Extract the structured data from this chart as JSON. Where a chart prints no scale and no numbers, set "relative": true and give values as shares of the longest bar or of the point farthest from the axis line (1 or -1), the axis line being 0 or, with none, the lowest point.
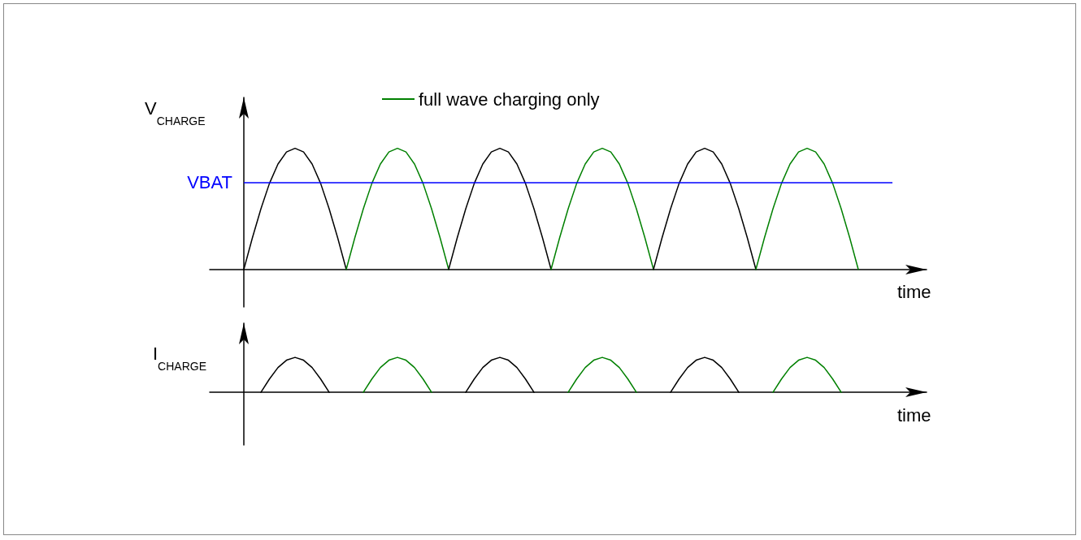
{
  "chart_data": [
    {
      "type": "line",
      "relative": true,
      "ylabel": "V$_{CHARGE}$",
      "xlabel": "time",
      "legend": "top",
      "marker": "none",
      "line_style": "solid",
      "grid": false,
      "categories": [
        null,
        null,
        null,
        null,
        null,
        null,
        null,
        null,
        null,
        null,
        null,
        null,
        null,
        null,
        null,
        null,
        null,
        null,
        null,
        null,
        null,
        null,
        null,
        null,
        null,
        null,
        null,
        null,
        null,
        null,
        null,
        null,
        null,
        null,
        null,
        null,
        null,
        null,
        null,
        null,
        null,
        null,
        null,
        null,
        null,
        null,
        null,
        null,
        null,
        null,
        null,
        null,
        null,
        null,
        null,
        null,
        null,
        null,
        null,
        null,
        null,
        null,
        null,
        null,
        null,
        null,
        null,
        null,
        null,
        null,
        null,
        null,
        null
      ],
      "series": [
        {
          "color": "#000000",
          "values": [
            0,
            0.26,
            0.5,
            0.71,
            0.87,
            0.97,
            1,
            0.97,
            0.87,
            0.71,
            0.5,
            0.26,
            0,
            null,
            null,
            null,
            null,
            null,
            null,
            null,
            null,
            null,
            null,
            null,
            null,
            null,
            null,
            null,
            null,
            null,
            null,
            null,
            null,
            null,
            null,
            null,
            null,
            null,
            null,
            null,
            null,
            null,
            null,
            null,
            null,
            null,
            null,
            null,
            null,
            null,
            null,
            null,
            null,
            null,
            null,
            null,
            null,
            null,
            null,
            null,
            null,
            null,
            null,
            null,
            null,
            null,
            null,
            null,
            null,
            null,
            null,
            null,
            null
          ]
        },
        {
          "name": "full wave charging only",
          "color": "#008000",
          "values": [
            null,
            null,
            null,
            null,
            null,
            null,
            null,
            null,
            null,
            null,
            null,
            null,
            0,
            0.26,
            0.5,
            0.71,
            0.87,
            0.97,
            1,
            0.97,
            0.87,
            0.71,
            0.5,
            0.26,
            0,
            null,
            null,
            null,
            null,
            null,
            null,
            null,
            null,
            null,
            null,
            null,
            null,
            null,
            null,
            null,
            null,
            null,
            null,
            null,
            null,
            null,
            null,
            null,
            null,
            null,
            null,
            null,
            null,
            null,
            null,
            null,
            null,
            null,
            null,
            null,
            null,
            null,
            null,
            null,
            null,
            null,
            null,
            null,
            null,
            null,
            null,
            null,
            null
          ]
        },
        {
          "color": "#000000",
          "values": [
            null,
            null,
            null,
            null,
            null,
            null,
            null,
            null,
            null,
            null,
            null,
            null,
            null,
            null,
            null,
            null,
            null,
            null,
            null,
            null,
            null,
            null,
            null,
            null,
            0,
            0.26,
            0.5,
            0.71,
            0.87,
            0.97,
            1,
            0.97,
            0.87,
            0.71,
            0.5,
            0.26,
            0,
            null,
            null,
            null,
            null,
            null,
            null,
            null,
            null,
            null,
            null,
            null,
            null,
            null,
            null,
            null,
            null,
            null,
            null,
            null,
            null,
            null,
            null,
            null,
            null,
            null,
            null,
            null,
            null,
            null,
            null,
            null,
            null,
            null,
            null,
            null,
            null
          ]
        },
        {
          "color": "#008000",
          "values": [
            null,
            null,
            null,
            null,
            null,
            null,
            null,
            null,
            null,
            null,
            null,
            null,
            null,
            null,
            null,
            null,
            null,
            null,
            null,
            null,
            null,
            null,
            null,
            null,
            null,
            null,
            null,
            null,
            null,
            null,
            null,
            null,
            null,
            null,
            null,
            null,
            0,
            0.26,
            0.5,
            0.71,
            0.87,
            0.97,
            1,
            0.97,
            0.87,
            0.71,
            0.5,
            0.26,
            0,
            null,
            null,
            null,
            null,
            null,
            null,
            null,
            null,
            null,
            null,
            null,
            null,
            null,
            null,
            null,
            null,
            null,
            null,
            null,
            null,
            null,
            null,
            null,
            null
          ]
        },
        {
          "color": "#000000",
          "values": [
            null,
            null,
            null,
            null,
            null,
            null,
            null,
            null,
            null,
            null,
            null,
            null,
            null,
            null,
            null,
            null,
            null,
            null,
            null,
            null,
            null,
            null,
            null,
            null,
            null,
            null,
            null,
            null,
            null,
            null,
            null,
            null,
            null,
            null,
            null,
            null,
            null,
            null,
            null,
            null,
            null,
            null,
            null,
            null,
            null,
            null,
            null,
            null,
            0,
            0.26,
            0.5,
            0.71,
            0.87,
            0.97,
            1,
            0.97,
            0.87,
            0.71,
            0.5,
            0.26,
            0,
            null,
            null,
            null,
            null,
            null,
            null,
            null,
            null,
            null,
            null,
            null,
            null
          ]
        },
        {
          "color": "#008000",
          "values": [
            null,
            null,
            null,
            null,
            null,
            null,
            null,
            null,
            null,
            null,
            null,
            null,
            null,
            null,
            null,
            null,
            null,
            null,
            null,
            null,
            null,
            null,
            null,
            null,
            null,
            null,
            null,
            null,
            null,
            null,
            null,
            null,
            null,
            null,
            null,
            null,
            null,
            null,
            null,
            null,
            null,
            null,
            null,
            null,
            null,
            null,
            null,
            null,
            null,
            null,
            null,
            null,
            null,
            null,
            null,
            null,
            null,
            null,
            null,
            null,
            0,
            0.26,
            0.5,
            0.71,
            0.87,
            0.97,
            1,
            0.97,
            0.87,
            0.71,
            0.5,
            0.26,
            0
          ]
        }
      ],
      "ref_lines": [
        {
          "axis": "y",
          "value": 0.72,
          "label": "VBAT",
          "color": "#0000ff"
        }
      ]
    },
    {
      "type": "line",
      "relative": true,
      "ylabel": "I$_{CHARGE}$",
      "xlabel": "time",
      "marker": "none",
      "line_style": "solid",
      "grid": false,
      "categories": [
        null,
        null,
        null,
        null,
        null,
        null,
        null,
        null,
        null,
        null,
        null,
        null,
        null,
        null,
        null,
        null,
        null,
        null,
        null,
        null,
        null,
        null,
        null,
        null,
        null,
        null,
        null,
        null,
        null,
        null,
        null,
        null,
        null,
        null,
        null,
        null,
        null,
        null,
        null,
        null,
        null,
        null,
        null,
        null,
        null,
        null,
        null,
        null,
        null,
        null,
        null,
        null,
        null,
        null,
        null,
        null,
        null,
        null,
        null,
        null,
        null,
        null,
        null,
        null,
        null,
        null,
        null,
        null,
        null,
        null,
        null,
        null,
        null
      ],
      "series": [
        {
          "color": "#000000",
          "values": [
            null,
            null,
            0,
            0.38,
            0.71,
            0.92,
            1,
            0.92,
            0.71,
            0.38,
            0,
            null,
            null,
            null,
            null,
            null,
            null,
            null,
            null,
            null,
            null,
            null,
            null,
            null,
            null,
            null,
            null,
            null,
            null,
            null,
            null,
            null,
            null,
            null,
            null,
            null,
            null,
            null,
            null,
            null,
            null,
            null,
            null,
            null,
            null,
            null,
            null,
            null,
            null,
            null,
            null,
            null,
            null,
            null,
            null,
            null,
            null,
            null,
            null,
            null,
            null,
            null,
            null,
            null,
            null,
            null,
            null,
            null,
            null,
            null,
            null,
            null,
            null
          ]
        },
        {
          "color": "#008000",
          "values": [
            null,
            null,
            null,
            null,
            null,
            null,
            null,
            null,
            null,
            null,
            null,
            null,
            null,
            null,
            0,
            0.38,
            0.71,
            0.92,
            1,
            0.92,
            0.71,
            0.38,
            0,
            null,
            null,
            null,
            null,
            null,
            null,
            null,
            null,
            null,
            null,
            null,
            null,
            null,
            null,
            null,
            null,
            null,
            null,
            null,
            null,
            null,
            null,
            null,
            null,
            null,
            null,
            null,
            null,
            null,
            null,
            null,
            null,
            null,
            null,
            null,
            null,
            null,
            null,
            null,
            null,
            null,
            null,
            null,
            null,
            null,
            null,
            null,
            null,
            null,
            null
          ]
        },
        {
          "color": "#000000",
          "values": [
            null,
            null,
            null,
            null,
            null,
            null,
            null,
            null,
            null,
            null,
            null,
            null,
            null,
            null,
            null,
            null,
            null,
            null,
            null,
            null,
            null,
            null,
            null,
            null,
            null,
            null,
            0,
            0.38,
            0.71,
            0.92,
            1,
            0.92,
            0.71,
            0.38,
            0,
            null,
            null,
            null,
            null,
            null,
            null,
            null,
            null,
            null,
            null,
            null,
            null,
            null,
            null,
            null,
            null,
            null,
            null,
            null,
            null,
            null,
            null,
            null,
            null,
            null,
            null,
            null,
            null,
            null,
            null,
            null,
            null,
            null,
            null,
            null,
            null,
            null,
            null
          ]
        },
        {
          "color": "#008000",
          "values": [
            null,
            null,
            null,
            null,
            null,
            null,
            null,
            null,
            null,
            null,
            null,
            null,
            null,
            null,
            null,
            null,
            null,
            null,
            null,
            null,
            null,
            null,
            null,
            null,
            null,
            null,
            null,
            null,
            null,
            null,
            null,
            null,
            null,
            null,
            null,
            null,
            null,
            null,
            0,
            0.38,
            0.71,
            0.92,
            1,
            0.92,
            0.71,
            0.38,
            0,
            null,
            null,
            null,
            null,
            null,
            null,
            null,
            null,
            null,
            null,
            null,
            null,
            null,
            null,
            null,
            null,
            null,
            null,
            null,
            null,
            null,
            null,
            null,
            null,
            null,
            null
          ]
        },
        {
          "color": "#000000",
          "values": [
            null,
            null,
            null,
            null,
            null,
            null,
            null,
            null,
            null,
            null,
            null,
            null,
            null,
            null,
            null,
            null,
            null,
            null,
            null,
            null,
            null,
            null,
            null,
            null,
            null,
            null,
            null,
            null,
            null,
            null,
            null,
            null,
            null,
            null,
            null,
            null,
            null,
            null,
            null,
            null,
            null,
            null,
            null,
            null,
            null,
            null,
            null,
            null,
            null,
            null,
            0,
            0.38,
            0.71,
            0.92,
            1,
            0.92,
            0.71,
            0.38,
            0,
            null,
            null,
            null,
            null,
            null,
            null,
            null,
            null,
            null,
            null,
            null,
            null,
            null,
            null
          ]
        },
        {
          "color": "#008000",
          "values": [
            null,
            null,
            null,
            null,
            null,
            null,
            null,
            null,
            null,
            null,
            null,
            null,
            null,
            null,
            null,
            null,
            null,
            null,
            null,
            null,
            null,
            null,
            null,
            null,
            null,
            null,
            null,
            null,
            null,
            null,
            null,
            null,
            null,
            null,
            null,
            null,
            null,
            null,
            null,
            null,
            null,
            null,
            null,
            null,
            null,
            null,
            null,
            null,
            null,
            null,
            null,
            null,
            null,
            null,
            null,
            null,
            null,
            null,
            null,
            null,
            null,
            null,
            0,
            0.38,
            0.71,
            0.92,
            1,
            0.92,
            0.71,
            0.38,
            0,
            null,
            null
          ]
        }
      ]
    }
  ]
}
